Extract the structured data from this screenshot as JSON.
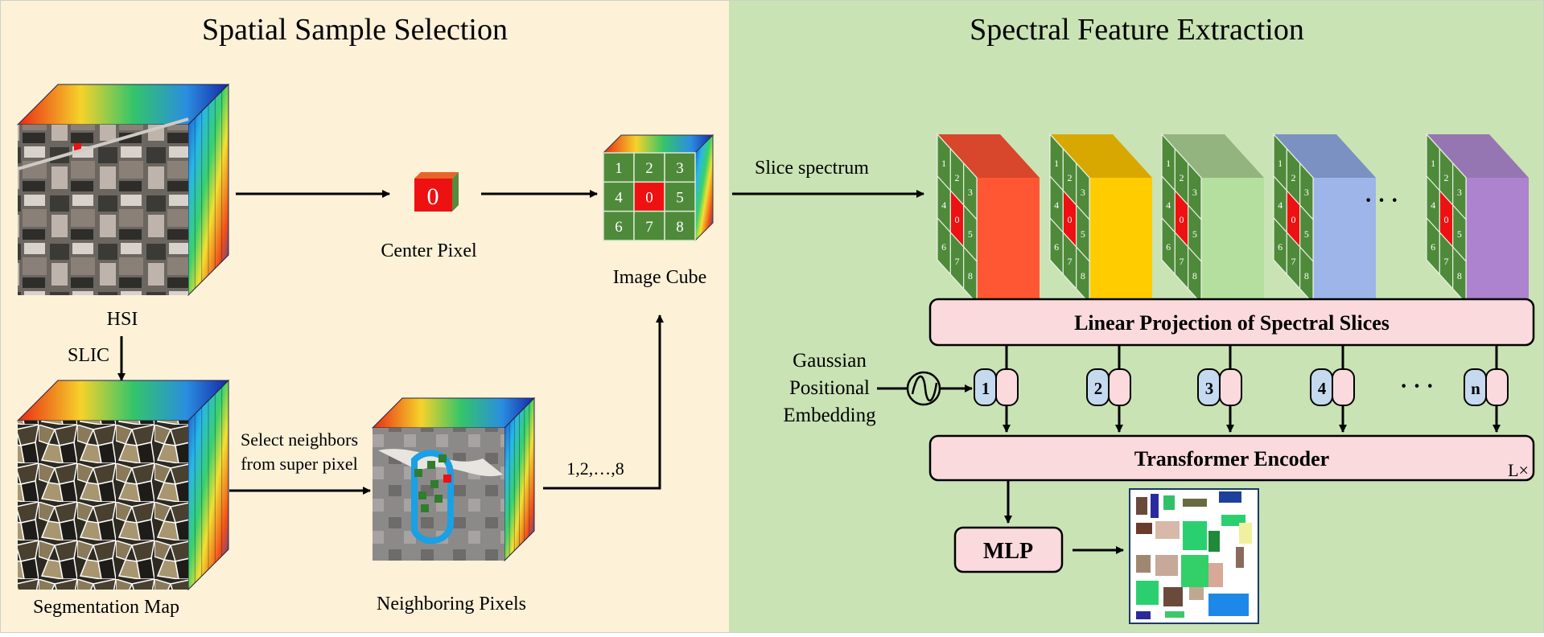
{
  "left_panel": {
    "title": "Spatial Sample Selection",
    "hsi_label": "HSI",
    "slic_label": "SLIC",
    "segmentation_label": "Segmentation Map",
    "select_neighbors_line1": "Select neighbors",
    "select_neighbors_line2": "from super pixel",
    "neighboring_label": "Neighboring Pixels",
    "sequence_label": "1,2,…,8",
    "center_pixel_label": "Center Pixel",
    "center_pixel_value": "0",
    "image_cube_label": "Image Cube",
    "image_cube_cells": [
      "1",
      "2",
      "3",
      "4",
      "0",
      "5",
      "6",
      "7",
      "8"
    ]
  },
  "right_panel": {
    "title": "Spectral Feature Extraction",
    "slice_spectrum_label": "Slice spectrum",
    "linear_projection_label": "Linear Projection of Spectral Slices",
    "positional_line1": "Gaussian",
    "positional_line2": "Positional",
    "positional_line3": "Embedding",
    "tokens": [
      "1",
      "2",
      "3",
      "4",
      "n"
    ],
    "ellipsis": "· · ·",
    "transformer_label": "Transformer Encoder",
    "repeat_label": "L×",
    "mlp_label": "MLP",
    "slice_cells": [
      "1",
      "2",
      "3",
      "4",
      "0",
      "5",
      "6",
      "7",
      "8"
    ]
  },
  "colors": {
    "left_bg": "#fdf1d8",
    "right_bg": "#c9e3b4",
    "box_fill": "#fadadd",
    "token_fill": "#c5d9ef",
    "grid_green": "#4e8a3a",
    "center_red": "#ee1111",
    "slice_colors": [
      "#ff5733",
      "#ffcc00",
      "#b5df9e",
      "#9db5e8",
      "#ad82cf"
    ],
    "slice_top_colors": [
      "#d8462b",
      "#d9a800",
      "#93b47f",
      "#7a91c2",
      "#9676b2"
    ]
  }
}
